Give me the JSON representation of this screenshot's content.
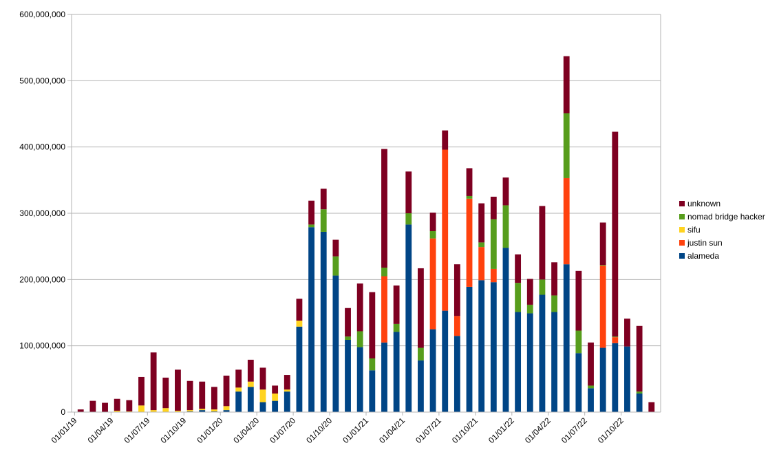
{
  "chart_data": {
    "type": "bar",
    "stacked": true,
    "title": "",
    "xlabel": "",
    "ylabel": "",
    "ylim": [
      0,
      600000000
    ],
    "yticks": [
      "0",
      "100,000,000",
      "200,000,000",
      "300,000,000",
      "400,000,000",
      "500,000,000",
      "600,000,000"
    ],
    "grid": true,
    "legend_position": "right",
    "x_tick_labels": [
      "01/01/19",
      "01/04/19",
      "01/07/19",
      "01/10/19",
      "01/01/20",
      "01/04/20",
      "01/07/20",
      "01/10/20",
      "01/01/21",
      "01/04/21",
      "01/07/21",
      "01/10/21",
      "01/01/22",
      "01/04/22",
      "01/07/22",
      "01/10/22"
    ],
    "categories": [
      "2019-01",
      "2019-02",
      "2019-03",
      "2019-04",
      "2019-05",
      "2019-06",
      "2019-07",
      "2019-08",
      "2019-09",
      "2019-10",
      "2019-11",
      "2019-12",
      "2020-01",
      "2020-02",
      "2020-03",
      "2020-04",
      "2020-05",
      "2020-06",
      "2020-07",
      "2020-08",
      "2020-09",
      "2020-10",
      "2020-11",
      "2020-12",
      "2021-01",
      "2021-02",
      "2021-03",
      "2021-04",
      "2021-05",
      "2021-06",
      "2021-07",
      "2021-08",
      "2021-09",
      "2021-10",
      "2021-11",
      "2021-12",
      "2022-01",
      "2022-02",
      "2022-03",
      "2022-04",
      "2022-05",
      "2022-06",
      "2022-07",
      "2022-08",
      "2022-09",
      "2022-10",
      "2022-11",
      "2022-12"
    ],
    "series": [
      {
        "name": "alameda",
        "color": "#004586",
        "values": [
          0,
          0,
          0,
          0,
          0,
          0,
          0,
          0,
          0,
          1000000,
          3000000,
          1000000,
          3000000,
          31000000,
          38000000,
          15000000,
          17000000,
          31000000,
          129000000,
          279000000,
          272000000,
          206000000,
          109000000,
          98000000,
          63000000,
          105000000,
          121000000,
          283000000,
          78000000,
          125000000,
          153000000,
          115000000,
          189000000,
          199000000,
          196000000,
          248000000,
          151000000,
          149000000,
          177000000,
          151000000,
          223000000,
          89000000,
          36000000,
          97000000,
          104000000,
          99000000,
          28000000,
          0
        ]
      },
      {
        "name": "justin sun",
        "color": "#ff420e",
        "values": [
          0,
          0,
          0,
          0,
          0,
          0,
          0,
          0,
          0,
          0,
          0,
          0,
          0,
          0,
          0,
          0,
          0,
          0,
          0,
          0,
          0,
          0,
          0,
          0,
          0,
          100000000,
          0,
          0,
          0,
          137000000,
          243000000,
          30000000,
          133000000,
          50000000,
          20000000,
          0,
          0,
          0,
          0,
          0,
          130000000,
          0,
          0,
          124000000,
          9000000,
          0,
          0,
          0
        ]
      },
      {
        "name": "sifu",
        "color": "#ffd320",
        "values": [
          0,
          0,
          0,
          2000000,
          1000000,
          10000000,
          3000000,
          6000000,
          2000000,
          2000000,
          2000000,
          3000000,
          6000000,
          6000000,
          8000000,
          19000000,
          11000000,
          3000000,
          9000000,
          0,
          0,
          0,
          0,
          0,
          0,
          0,
          0,
          0,
          0,
          0,
          0,
          0,
          0,
          0,
          0,
          0,
          0,
          0,
          0,
          0,
          0,
          0,
          0,
          0,
          0,
          0,
          0,
          0
        ]
      },
      {
        "name": "nomad bridge hacker",
        "color": "#579d1c",
        "values": [
          0,
          0,
          0,
          0,
          0,
          0,
          0,
          0,
          0,
          0,
          0,
          0,
          0,
          0,
          0,
          0,
          0,
          0,
          0,
          4000000,
          34000000,
          29000000,
          5000000,
          24000000,
          18000000,
          13000000,
          12000000,
          17000000,
          19000000,
          11000000,
          0,
          0,
          4000000,
          7000000,
          75000000,
          64000000,
          44000000,
          13000000,
          23000000,
          25000000,
          98000000,
          34000000,
          4000000,
          1000000,
          1000000,
          0,
          3000000,
          0
        ]
      },
      {
        "name": "unknown",
        "color": "#7e0021",
        "values": [
          4000000,
          17000000,
          14000000,
          18000000,
          17000000,
          43000000,
          87000000,
          46000000,
          62000000,
          44000000,
          41000000,
          34000000,
          46000000,
          27000000,
          33000000,
          33000000,
          12000000,
          22000000,
          33000000,
          36000000,
          31000000,
          25000000,
          43000000,
          72000000,
          100000000,
          179000000,
          58000000,
          63000000,
          120000000,
          28000000,
          29000000,
          78000000,
          42000000,
          59000000,
          34000000,
          42000000,
          43000000,
          39000000,
          111000000,
          50000000,
          86000000,
          90000000,
          65000000,
          64000000,
          309000000,
          42000000,
          99000000,
          15000000
        ]
      }
    ]
  }
}
